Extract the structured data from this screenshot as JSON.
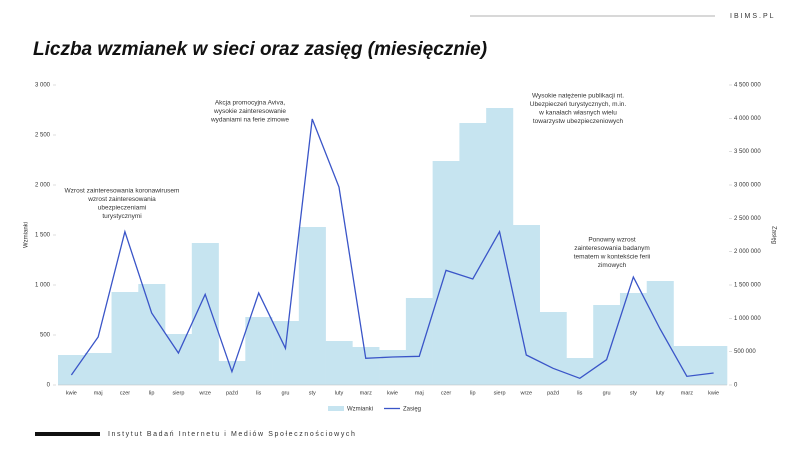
{
  "brand": "IBIMS.PL",
  "footer": "Instytut Badań Internetu i Mediów Społecznościowych",
  "chart_data": {
    "type": "bar-line",
    "title": "Liczba wzmianek w sieci oraz zasięg (miesięcznie)",
    "ylabel": "Wzmianki",
    "y2label": "Zasięg",
    "categories": [
      "kwie",
      "maj",
      "czer",
      "lip",
      "sierp",
      "wrze",
      "paźd",
      "lis",
      "gru",
      "sty",
      "luty",
      "marz",
      "kwie",
      "maj",
      "czer",
      "lip",
      "sierp",
      "wrze",
      "paźd",
      "lis",
      "gru",
      "sty",
      "luty",
      "marz",
      "kwie"
    ],
    "series": [
      {
        "name": "Wzmianki",
        "type": "bar",
        "color": "#c6e4f0",
        "values": [
          300,
          320,
          930,
          1010,
          510,
          1420,
          240,
          680,
          640,
          1580,
          440,
          380,
          350,
          870,
          2240,
          2620,
          2770,
          1600,
          730,
          270,
          800,
          920,
          1040,
          390,
          390
        ]
      },
      {
        "name": "Zasięg",
        "type": "line",
        "axis": "y2",
        "color": "#3a55c8",
        "values": [
          150000,
          720000,
          2300000,
          1080000,
          480000,
          1360000,
          200000,
          1380000,
          550000,
          3990000,
          2970000,
          400000,
          420000,
          430000,
          1720000,
          1590000,
          2300000,
          450000,
          250000,
          100000,
          380000,
          1620000,
          840000,
          130000,
          180000
        ]
      }
    ],
    "ylim": [
      0,
      3000
    ],
    "yticks": [
      0,
      500,
      {
        "value": 1000,
        "label": "1 000"
      },
      {
        "value": 1500,
        "label": "1 500"
      },
      {
        "value": 2000,
        "label": "2 000"
      },
      {
        "value": 2500,
        "label": "2 500"
      },
      {
        "value": 3000,
        "label": "3 000"
      }
    ],
    "y2lim": [
      0,
      4500000
    ],
    "y2ticks": [
      0,
      {
        "value": 500000,
        "label": "500 000"
      },
      {
        "value": 1000000,
        "label": "1 000 000"
      },
      {
        "value": 1500000,
        "label": "1 500 000"
      },
      {
        "value": 2000000,
        "label": "2 000 000"
      },
      {
        "value": 2500000,
        "label": "2 500 000"
      },
      {
        "value": 3000000,
        "label": "3 000 000"
      },
      {
        "value": 3500000,
        "label": "3 500 000"
      },
      {
        "value": 4000000,
        "label": "4 000 000"
      },
      {
        "value": 4500000,
        "label": "4 500 000"
      }
    ],
    "annotations": [
      [
        "Wzrost zainteresowania koronawirusem",
        "wzrost zainteresowania",
        "ubezpieczeniami",
        "turystycznymi"
      ],
      [
        "Akcja promocyjna Aviva,",
        "wysokie zainteresowanie",
        "wydaniami na ferie zimowe"
      ],
      [
        "Wysokie natężenie publikacji nt.",
        "Ubezpieczeń turystycznych, m.in.",
        "w kanałach własnych wielu",
        "towarzystw ubezpieczeniowych"
      ],
      [
        "Ponowny wzrost",
        "zainteresowania badanym",
        "tematem w kontekście ferii",
        "zimowych"
      ]
    ]
  }
}
